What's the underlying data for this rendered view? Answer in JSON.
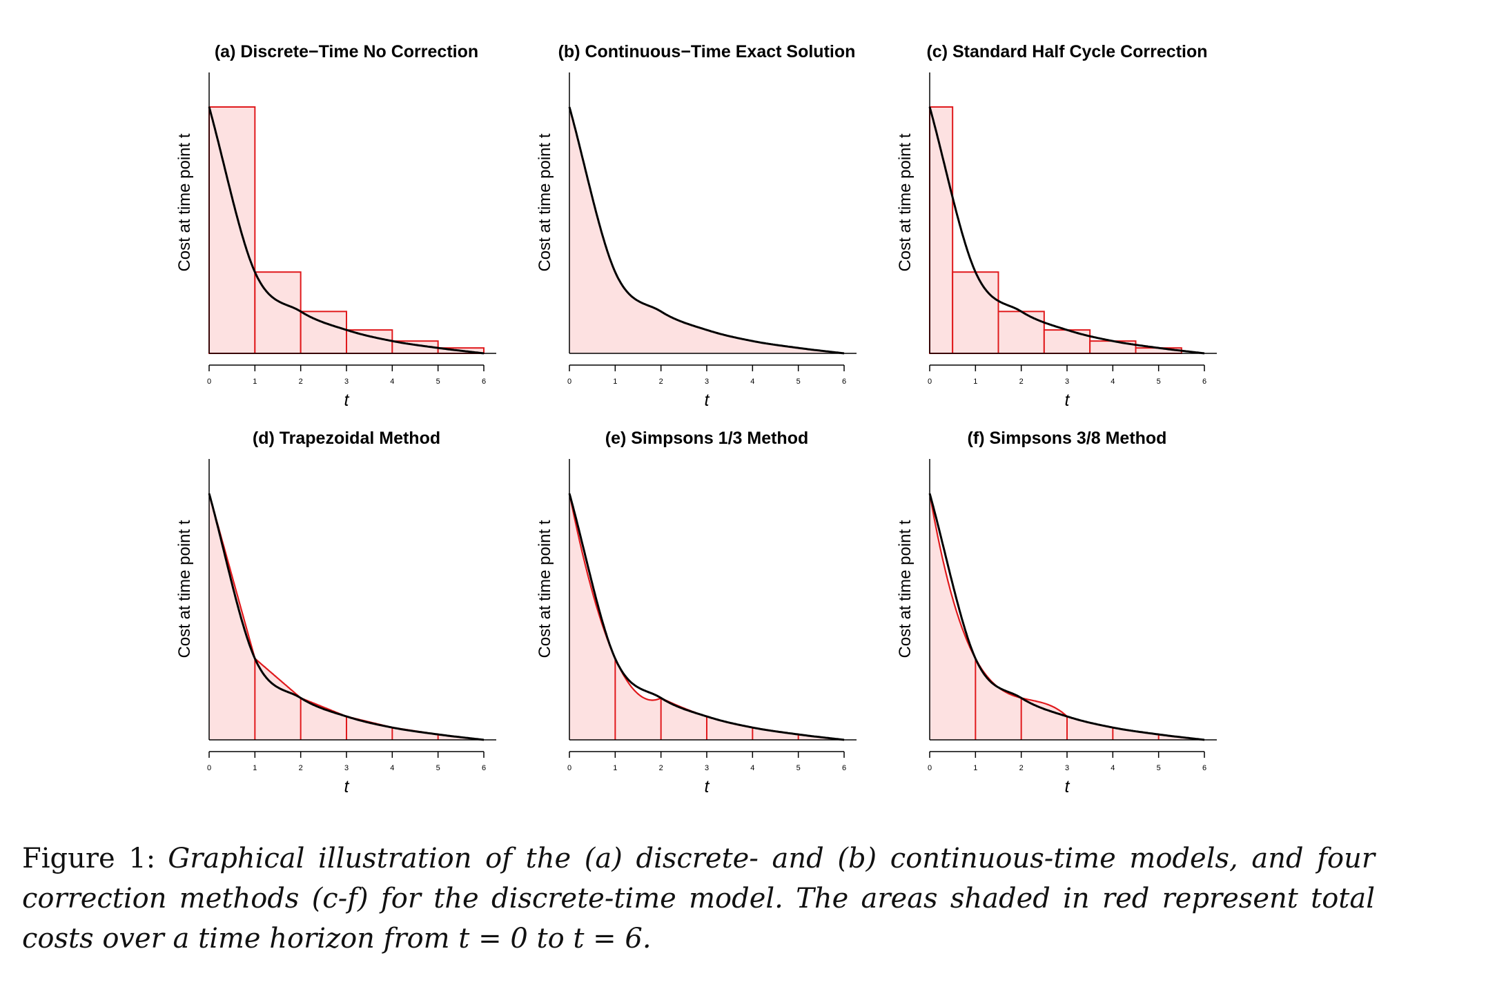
{
  "figure": {
    "caption_label": "Figure 1:",
    "caption_text": "Graphical illustration of the (a) discrete- and (b) continuous-time models, and four correction methods (c-f) for the discrete-time model. The areas shaded in red represent total costs over a time horizon from t = 0 to t = 6."
  },
  "colors": {
    "curve": "#000000",
    "approx": "#e0191c",
    "fill": "#fde1e1"
  },
  "chart_data": [
    {
      "type": "area",
      "title": "(a) Discrete−Time No Correction",
      "xlabel": "t",
      "ylabel": "Cost at time point t",
      "x_ticks": [
        "0",
        "1",
        "2",
        "3",
        "4",
        "5",
        "6"
      ],
      "xlim": [
        0,
        6
      ],
      "ylim": [
        0,
        1
      ],
      "curve": {
        "x": [
          0,
          1,
          2,
          3,
          4,
          5,
          6
        ],
        "y": [
          1.0,
          0.33,
          0.17,
          0.095,
          0.05,
          0.022,
          0.0
        ]
      },
      "approximation": {
        "method": "left-endpoint rectangles",
        "x_start": [
          0,
          1,
          2,
          3,
          4,
          5
        ],
        "width": 1,
        "heights": [
          1.0,
          0.33,
          0.17,
          0.095,
          0.05,
          0.022
        ]
      }
    },
    {
      "type": "area",
      "title": "(b) Continuous−Time Exact Solution",
      "xlabel": "t",
      "ylabel": "Cost at time point t",
      "x_ticks": [
        "0",
        "1",
        "2",
        "3",
        "4",
        "5",
        "6"
      ],
      "xlim": [
        0,
        6
      ],
      "ylim": [
        0,
        1
      ],
      "curve": {
        "x": [
          0,
          1,
          2,
          3,
          4,
          5,
          6
        ],
        "y": [
          1.0,
          0.33,
          0.17,
          0.095,
          0.05,
          0.022,
          0.0
        ]
      },
      "approximation": {
        "method": "exact integral"
      }
    },
    {
      "type": "area",
      "title": "(c) Standard Half Cycle Correction",
      "xlabel": "t",
      "ylabel": "Cost at time point t",
      "x_ticks": [
        "0",
        "1",
        "2",
        "3",
        "4",
        "5",
        "6"
      ],
      "xlim": [
        0,
        6
      ],
      "ylim": [
        0,
        1
      ],
      "curve": {
        "x": [
          0,
          1,
          2,
          3,
          4,
          5,
          6
        ],
        "y": [
          1.0,
          0.33,
          0.17,
          0.095,
          0.05,
          0.022,
          0.0
        ]
      },
      "approximation": {
        "method": "half-cycle corrected rectangles",
        "x_start": [
          0,
          0.5,
          1.5,
          2.5,
          3.5,
          4.5
        ],
        "x_end": [
          0.5,
          1.5,
          2.5,
          3.5,
          4.5,
          5.5
        ],
        "heights": [
          1.0,
          0.33,
          0.17,
          0.095,
          0.05,
          0.022
        ]
      }
    },
    {
      "type": "area",
      "title": "(d) Trapezoidal Method",
      "xlabel": "t",
      "ylabel": "Cost at time point t",
      "x_ticks": [
        "0",
        "1",
        "2",
        "3",
        "4",
        "5",
        "6"
      ],
      "xlim": [
        0,
        6
      ],
      "ylim": [
        0,
        1
      ],
      "curve": {
        "x": [
          0,
          1,
          2,
          3,
          4,
          5,
          6
        ],
        "y": [
          1.0,
          0.33,
          0.17,
          0.095,
          0.05,
          0.022,
          0.0
        ]
      },
      "approximation": {
        "method": "trapezoidal",
        "nodes_x": [
          0,
          1,
          2,
          3,
          4,
          5,
          6
        ],
        "nodes_y": [
          1.0,
          0.33,
          0.17,
          0.095,
          0.05,
          0.022,
          0.0
        ]
      }
    },
    {
      "type": "area",
      "title": "(e) Simpsons 1/3 Method",
      "xlabel": "t",
      "ylabel": "Cost at time point t",
      "x_ticks": [
        "0",
        "1",
        "2",
        "3",
        "4",
        "5",
        "6"
      ],
      "xlim": [
        0,
        6
      ],
      "ylim": [
        0,
        1
      ],
      "curve": {
        "x": [
          0,
          1,
          2,
          3,
          4,
          5,
          6
        ],
        "y": [
          1.0,
          0.33,
          0.17,
          0.095,
          0.05,
          0.022,
          0.0
        ]
      },
      "approximation": {
        "method": "simpson 1/3",
        "panel_width": 2,
        "nodes_x": [
          0,
          1,
          2,
          3,
          4,
          5,
          6
        ],
        "nodes_y": [
          1.0,
          0.33,
          0.17,
          0.095,
          0.05,
          0.022,
          0.0
        ]
      }
    },
    {
      "type": "area",
      "title": "(f) Simpsons 3/8 Method",
      "xlabel": "t",
      "ylabel": "Cost at time point t",
      "x_ticks": [
        "0",
        "1",
        "2",
        "3",
        "4",
        "5",
        "6"
      ],
      "xlim": [
        0,
        6
      ],
      "ylim": [
        0,
        1
      ],
      "curve": {
        "x": [
          0,
          1,
          2,
          3,
          4,
          5,
          6
        ],
        "y": [
          1.0,
          0.33,
          0.17,
          0.095,
          0.05,
          0.022,
          0.0
        ]
      },
      "approximation": {
        "method": "simpson 3/8",
        "panel_width": 3,
        "nodes_x": [
          0,
          1,
          2,
          3,
          4,
          5,
          6
        ],
        "nodes_y": [
          1.0,
          0.33,
          0.17,
          0.095,
          0.05,
          0.022,
          0.0
        ]
      }
    }
  ]
}
